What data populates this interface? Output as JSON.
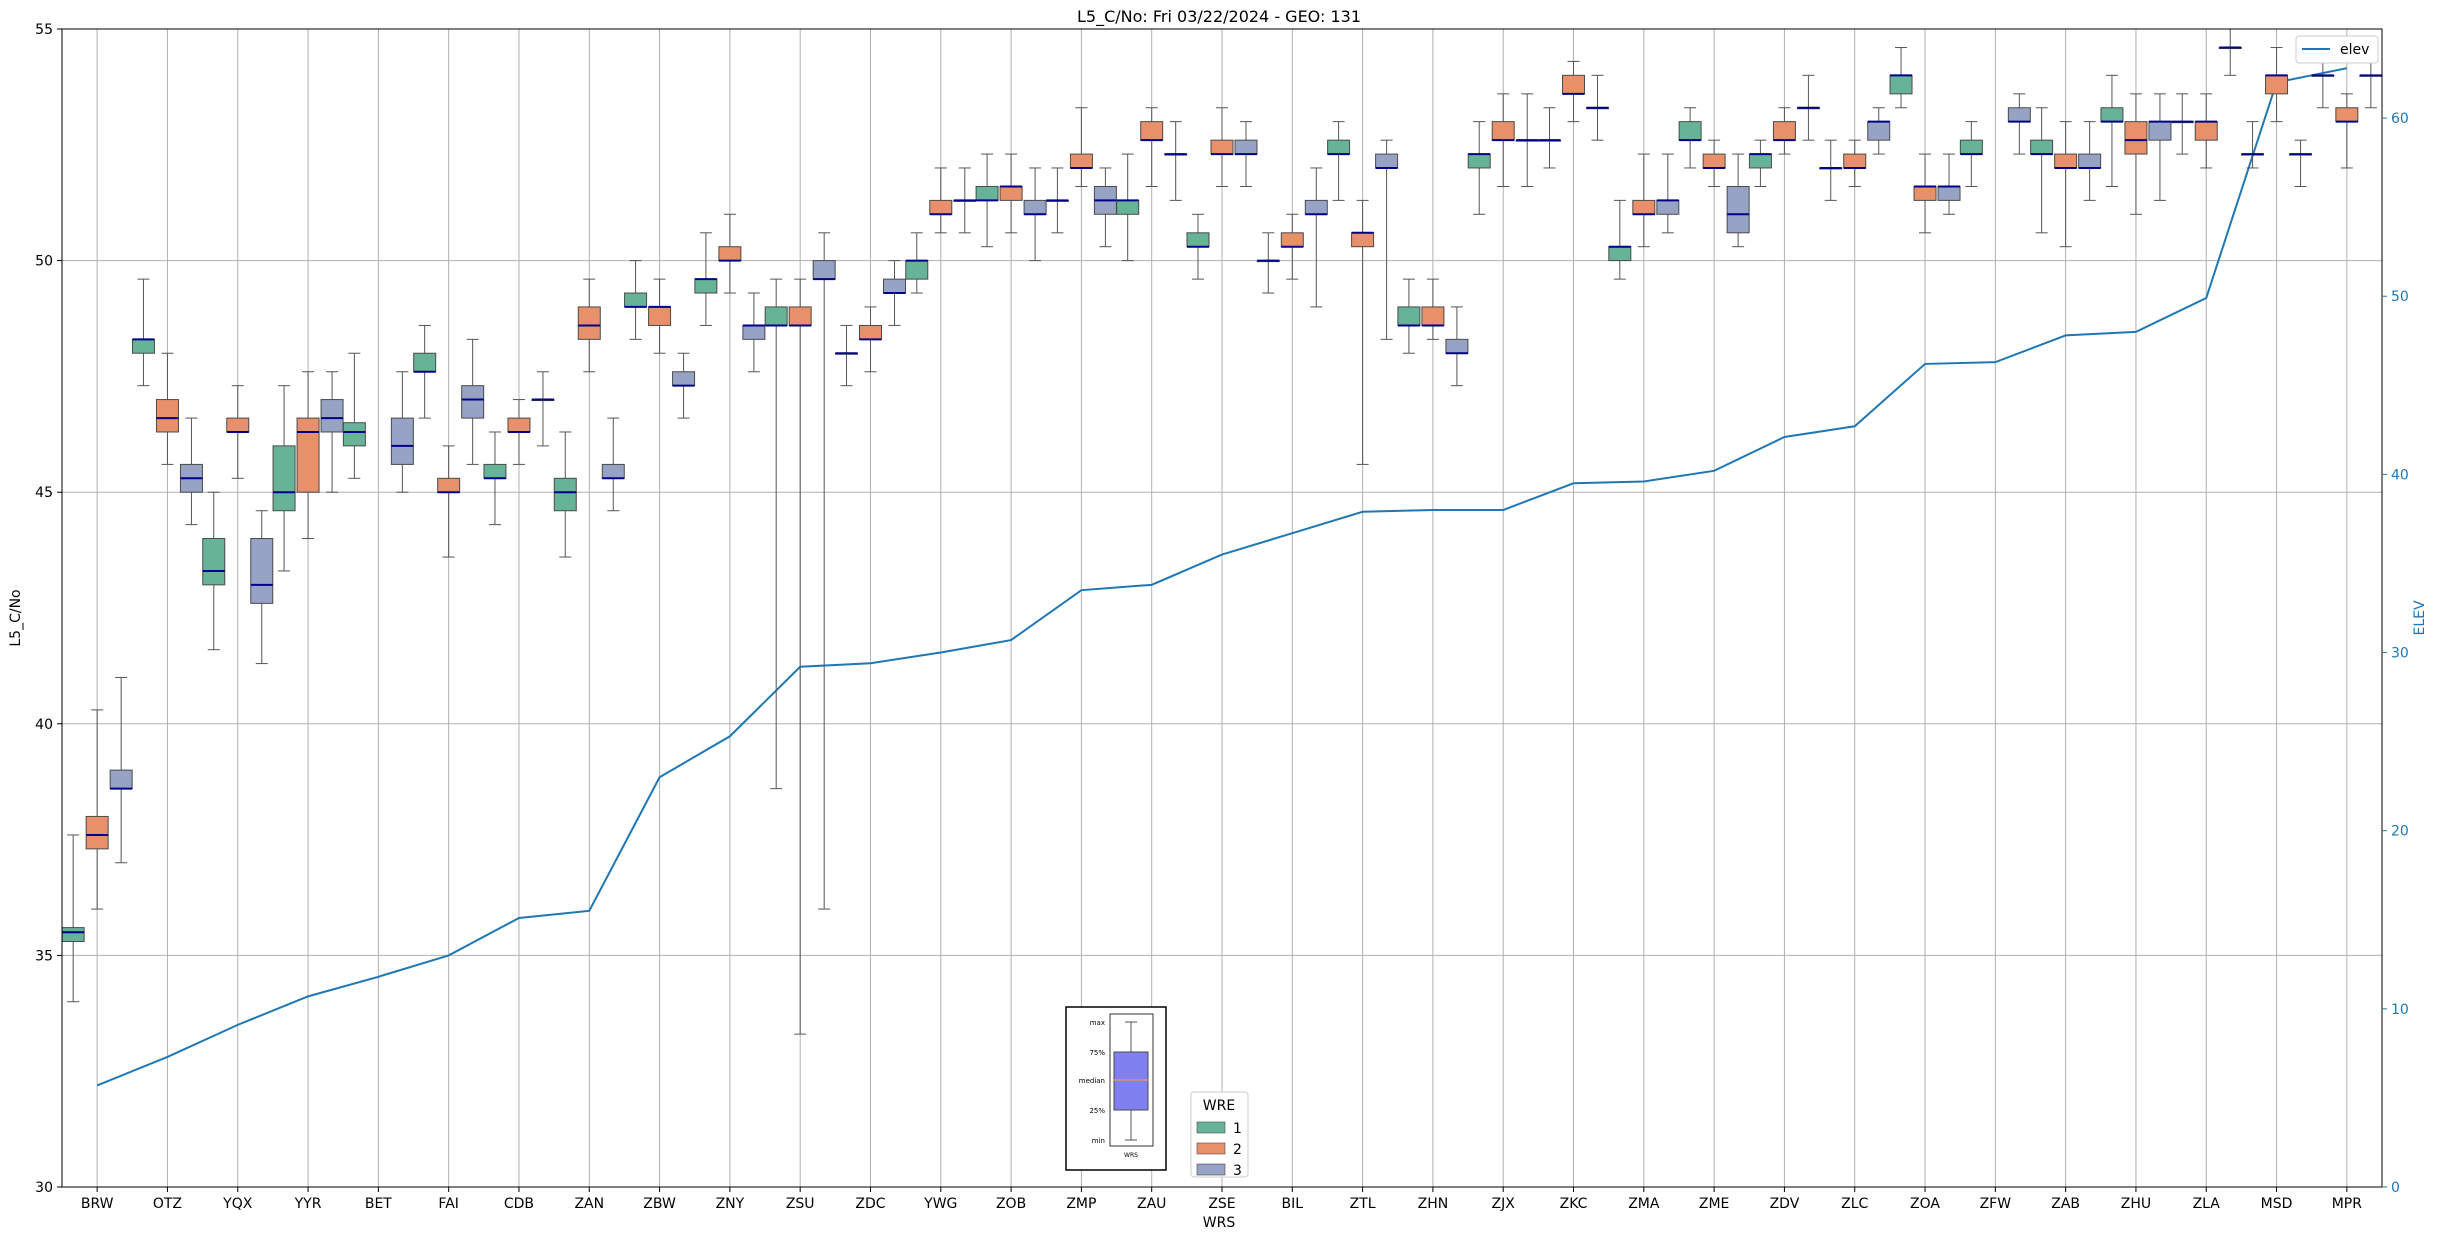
{
  "chart_data": {
    "type": "box",
    "title": "L5_C/No: Fri 03/22/2024 - GEO: 131",
    "xlabel": "WRS",
    "ylabel": "L5_C/No",
    "ylabel_right": "ELEV",
    "ylim": [
      30,
      55
    ],
    "ylim_right": [
      0,
      65
    ],
    "yticks": [
      30,
      35,
      40,
      45,
      50,
      55
    ],
    "yticks_right": [
      0,
      10,
      20,
      30,
      40,
      50,
      60
    ],
    "grid": true,
    "categories": [
      "BRW",
      "OTZ",
      "YQX",
      "YYR",
      "BET",
      "FAI",
      "CDB",
      "ZAN",
      "ZBW",
      "ZNY",
      "ZSU",
      "ZDC",
      "YWG",
      "ZOB",
      "ZMP",
      "ZAU",
      "ZSE",
      "BIL",
      "ZTL",
      "ZHN",
      "ZJX",
      "ZKC",
      "ZMA",
      "ZME",
      "ZDV",
      "ZLC",
      "ZOA",
      "ZFW",
      "ZAB",
      "ZHU",
      "ZLA",
      "MSD",
      "MPR"
    ],
    "series": [
      {
        "name": "1",
        "color": "#66b398",
        "boxes": [
          [
            34.0,
            35.3,
            35.5,
            35.6,
            37.6
          ],
          [
            47.3,
            48.0,
            48.3,
            48.3,
            49.6
          ],
          [
            41.6,
            43.0,
            43.3,
            44.0,
            45.0
          ],
          [
            43.3,
            44.6,
            45.0,
            46.0,
            47.3
          ],
          [
            45.3,
            46.0,
            46.3,
            46.5,
            48.0
          ],
          [
            46.6,
            47.6,
            47.6,
            48.0,
            48.6
          ],
          [
            44.3,
            45.3,
            45.3,
            45.6,
            46.3
          ],
          [
            43.6,
            44.6,
            45.0,
            45.3,
            46.3
          ],
          [
            48.3,
            49.0,
            49.0,
            49.3,
            50.0
          ],
          [
            48.6,
            49.3,
            49.6,
            49.6,
            50.6
          ],
          [
            38.6,
            48.6,
            48.6,
            49.0,
            49.6
          ],
          [
            47.3,
            48.0,
            48.0,
            48.0,
            48.6
          ],
          [
            49.3,
            49.6,
            50.0,
            50.0,
            50.6
          ],
          [
            50.3,
            51.3,
            51.3,
            51.6,
            52.3
          ],
          [
            50.6,
            51.3,
            51.3,
            51.3,
            52.0
          ],
          [
            50.0,
            51.0,
            51.3,
            51.3,
            52.3
          ],
          [
            49.6,
            50.3,
            50.3,
            50.6,
            51.0
          ],
          [
            49.3,
            50.0,
            50.0,
            50.0,
            50.6
          ],
          [
            51.3,
            52.3,
            52.3,
            52.6,
            53.0
          ],
          [
            48.0,
            48.6,
            48.6,
            49.0,
            49.6
          ],
          [
            51.0,
            52.0,
            52.3,
            52.3,
            53.0
          ],
          [
            52.0,
            52.6,
            52.6,
            52.6,
            53.3
          ],
          [
            49.6,
            50.0,
            50.3,
            50.3,
            51.3
          ],
          [
            52.0,
            52.6,
            52.6,
            53.0,
            53.3
          ],
          [
            51.6,
            52.0,
            52.3,
            52.3,
            52.6
          ],
          [
            51.3,
            52.0,
            52.0,
            52.0,
            52.6
          ],
          [
            53.3,
            53.6,
            54.0,
            54.0,
            54.6
          ],
          [
            51.6,
            52.3,
            52.3,
            52.6,
            53.0
          ],
          [
            50.6,
            52.3,
            52.3,
            52.6,
            53.3
          ],
          [
            51.6,
            53.0,
            53.0,
            53.3,
            54.0
          ],
          [
            52.3,
            53.0,
            53.0,
            53.0,
            53.6
          ],
          [
            52.0,
            52.3,
            52.3,
            52.3,
            53.0
          ],
          [
            53.3,
            54.0,
            54.0,
            54.0,
            54.6
          ]
        ]
      },
      {
        "name": "2",
        "color": "#e8906a",
        "boxes": [
          [
            36.0,
            37.3,
            37.6,
            38.0,
            40.3
          ],
          [
            45.6,
            46.3,
            46.6,
            47.0,
            48.0
          ],
          [
            45.3,
            46.3,
            46.3,
            46.6,
            47.3
          ],
          [
            44.0,
            45.0,
            46.3,
            46.6,
            47.6
          ],
          [
            null,
            null,
            null,
            null,
            null
          ],
          [
            43.6,
            45.0,
            45.0,
            45.3,
            46.0
          ],
          [
            45.6,
            46.3,
            46.3,
            46.6,
            47.0
          ],
          [
            47.6,
            48.3,
            48.6,
            49.0,
            49.6
          ],
          [
            48.0,
            48.6,
            49.0,
            49.0,
            49.6
          ],
          [
            49.3,
            50.0,
            50.0,
            50.3,
            51.0
          ],
          [
            33.3,
            48.6,
            48.6,
            49.0,
            49.6
          ],
          [
            47.6,
            48.3,
            48.3,
            48.6,
            49.0
          ],
          [
            50.6,
            51.0,
            51.0,
            51.3,
            52.0
          ],
          [
            50.6,
            51.3,
            51.6,
            51.6,
            52.3
          ],
          [
            51.6,
            52.0,
            52.0,
            52.3,
            53.3
          ],
          [
            51.6,
            52.6,
            52.6,
            53.0,
            53.3
          ],
          [
            51.6,
            52.3,
            52.3,
            52.6,
            53.3
          ],
          [
            49.6,
            50.3,
            50.3,
            50.6,
            51.0
          ],
          [
            45.6,
            50.3,
            50.6,
            50.6,
            51.3
          ],
          [
            48.3,
            48.6,
            48.6,
            49.0,
            49.6
          ],
          [
            51.6,
            52.6,
            52.6,
            53.0,
            53.6
          ],
          [
            53.0,
            53.6,
            53.6,
            54.0,
            54.3
          ],
          [
            50.3,
            51.0,
            51.0,
            51.3,
            52.3
          ],
          [
            51.6,
            52.0,
            52.0,
            52.3,
            52.6
          ],
          [
            52.3,
            52.6,
            52.6,
            53.0,
            53.3
          ],
          [
            51.6,
            52.0,
            52.0,
            52.3,
            52.6
          ],
          [
            50.6,
            51.3,
            51.6,
            51.6,
            52.3
          ],
          [
            null,
            null,
            null,
            null,
            null
          ],
          [
            50.3,
            52.0,
            52.0,
            52.3,
            53.0
          ],
          [
            51.0,
            52.3,
            52.6,
            53.0,
            53.6
          ],
          [
            52.0,
            52.6,
            53.0,
            53.0,
            53.6
          ],
          [
            53.0,
            53.6,
            54.0,
            54.0,
            54.6
          ],
          [
            52.0,
            53.0,
            53.0,
            53.3,
            53.6
          ]
        ]
      },
      {
        "name": "3",
        "color": "#97a3c4",
        "boxes": [
          [
            37.0,
            38.6,
            38.6,
            39.0,
            41.0
          ],
          [
            44.3,
            45.0,
            45.3,
            45.6,
            46.6
          ],
          [
            41.3,
            42.6,
            43.0,
            44.0,
            44.6
          ],
          [
            45.0,
            46.3,
            46.6,
            47.0,
            47.6
          ],
          [
            45.0,
            45.6,
            46.0,
            46.6,
            47.6
          ],
          [
            45.6,
            46.6,
            47.0,
            47.3,
            48.3
          ],
          [
            46.0,
            47.0,
            47.0,
            47.0,
            47.6
          ],
          [
            44.6,
            45.3,
            45.3,
            45.6,
            46.6
          ],
          [
            46.6,
            47.3,
            47.3,
            47.6,
            48.0
          ],
          [
            47.6,
            48.3,
            48.6,
            48.6,
            49.3
          ],
          [
            36.0,
            49.6,
            49.6,
            50.0,
            50.6
          ],
          [
            48.6,
            49.3,
            49.3,
            49.6,
            50.0
          ],
          [
            50.6,
            51.3,
            51.3,
            51.3,
            52.0
          ],
          [
            50.0,
            51.0,
            51.0,
            51.3,
            52.0
          ],
          [
            50.3,
            51.0,
            51.3,
            51.6,
            52.0
          ],
          [
            51.3,
            52.3,
            52.3,
            52.3,
            53.0
          ],
          [
            51.6,
            52.3,
            52.3,
            52.6,
            53.0
          ],
          [
            49.0,
            51.0,
            51.0,
            51.3,
            52.0
          ],
          [
            48.3,
            52.0,
            52.0,
            52.3,
            52.6
          ],
          [
            47.3,
            48.0,
            48.0,
            48.3,
            49.0
          ],
          [
            51.6,
            52.6,
            52.6,
            52.6,
            53.6
          ],
          [
            52.6,
            53.3,
            53.3,
            53.3,
            54.0
          ],
          [
            50.6,
            51.0,
            51.3,
            51.3,
            52.3
          ],
          [
            50.3,
            50.6,
            51.0,
            51.6,
            52.3
          ],
          [
            52.6,
            53.3,
            53.3,
            53.3,
            54.0
          ],
          [
            52.3,
            52.6,
            53.0,
            53.0,
            53.3
          ],
          [
            51.0,
            51.3,
            51.6,
            51.6,
            52.3
          ],
          [
            52.3,
            53.0,
            53.0,
            53.3,
            53.6
          ],
          [
            51.3,
            52.0,
            52.0,
            52.3,
            53.0
          ],
          [
            51.3,
            52.6,
            53.0,
            53.0,
            53.6
          ],
          [
            54.0,
            54.6,
            54.6,
            54.6,
            55.0
          ],
          [
            51.6,
            52.3,
            52.3,
            52.3,
            52.6
          ],
          [
            53.3,
            54.0,
            54.0,
            54.0,
            54.6
          ]
        ]
      }
    ],
    "elev": {
      "name": "elev",
      "color": "#1f77b4",
      "values": [
        5.7,
        7.3,
        9.1,
        10.7,
        11.8,
        13.0,
        15.1,
        15.5,
        23.0,
        25.3,
        29.2,
        29.4,
        30.0,
        30.7,
        33.5,
        33.8,
        35.5,
        36.7,
        37.9,
        38.0,
        38.0,
        39.5,
        39.6,
        40.2,
        42.1,
        42.7,
        46.2,
        46.3,
        47.8,
        48.0,
        49.9,
        62.0,
        62.8
      ]
    },
    "legend": {
      "title": "WRE",
      "entries": [
        "1",
        "2",
        "3"
      ],
      "placement": "bottom-center"
    },
    "legend_right": {
      "entries": [
        "elev"
      ],
      "placement": "top-right"
    },
    "inset_key": {
      "labels": [
        "max",
        "75%",
        "median",
        "25%",
        "min"
      ],
      "xlabel": "WRS",
      "placement": "bottom-center"
    }
  }
}
